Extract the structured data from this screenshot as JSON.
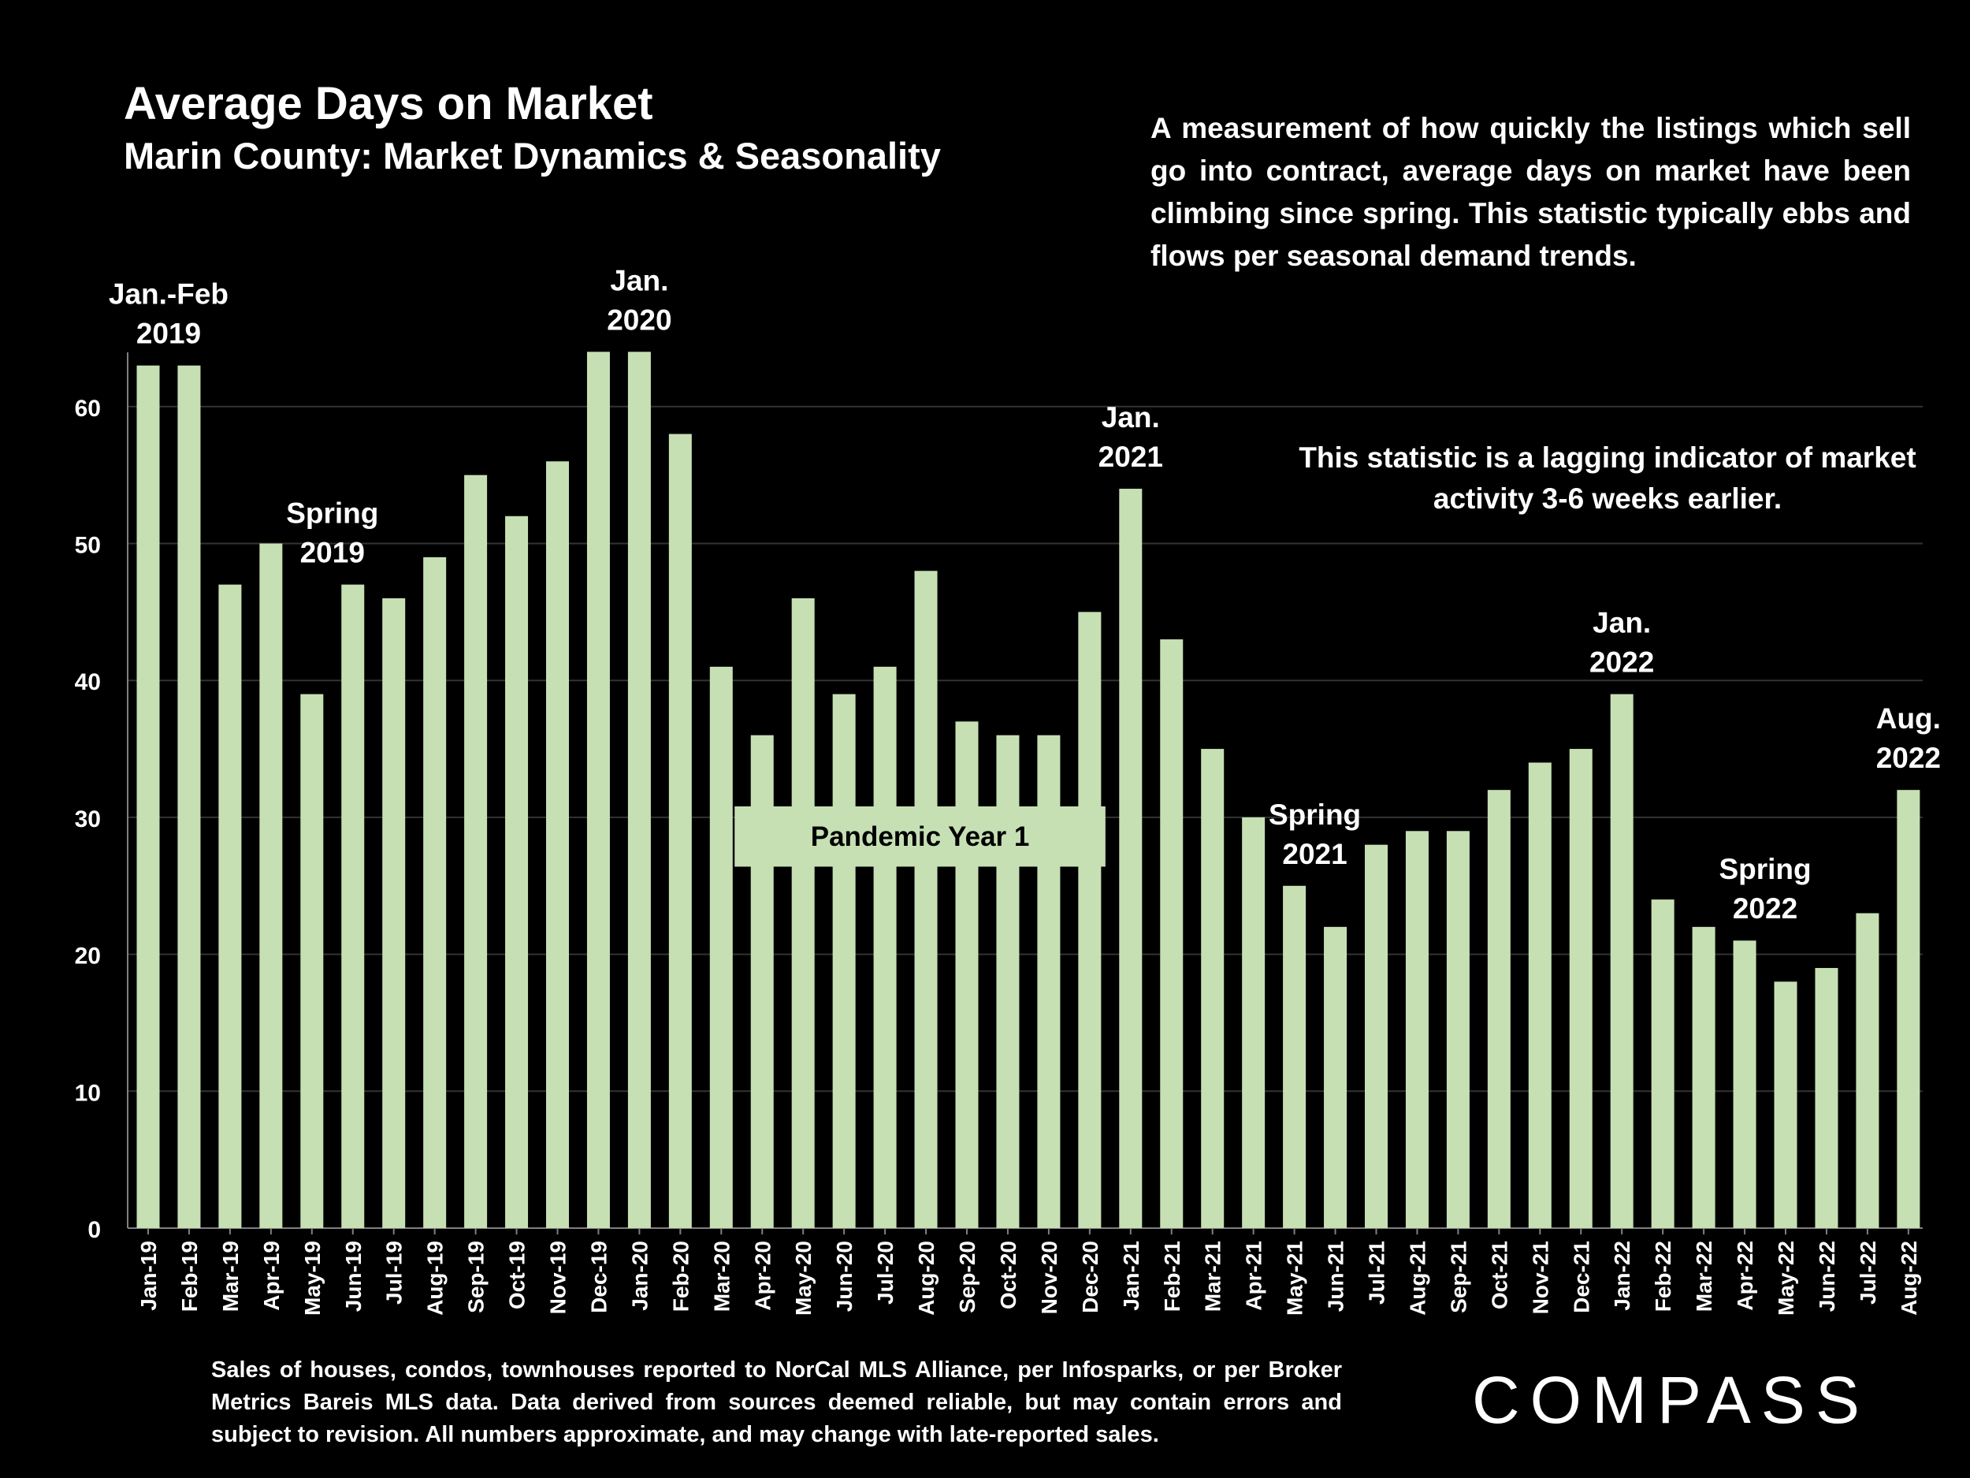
{
  "colors": {
    "background": "#000000",
    "bar": "#c6e0b4",
    "text": "#ffffff",
    "grid": "#333333",
    "band_text": "#000000"
  },
  "chart_data": {
    "type": "bar",
    "title": "Average Days on Market",
    "subtitle": "Marin County: Market Dynamics & Seasonality",
    "categories": [
      "Jan-19",
      "Feb-19",
      "Mar-19",
      "Apr-19",
      "May-19",
      "Jun-19",
      "Jul-19",
      "Aug-19",
      "Sep-19",
      "Oct-19",
      "Nov-19",
      "Dec-19",
      "Jan-20",
      "Feb-20",
      "Mar-20",
      "Apr-20",
      "May-20",
      "Jun-20",
      "Jul-20",
      "Aug-20",
      "Sep-20",
      "Oct-20",
      "Nov-20",
      "Dec-20",
      "Jan-21",
      "Feb-21",
      "Mar-21",
      "Apr-21",
      "May-21",
      "Jun-21",
      "Jul-21",
      "Aug-21",
      "Sep-21",
      "Oct-21",
      "Nov-21",
      "Dec-21",
      "Jan-22",
      "Feb-22",
      "Mar-22",
      "Apr-22",
      "May-22",
      "Jun-22",
      "Jul-22",
      "Aug-22"
    ],
    "values": [
      63,
      63,
      47,
      50,
      39,
      47,
      46,
      49,
      55,
      52,
      56,
      67,
      67,
      58,
      41,
      36,
      46,
      39,
      41,
      48,
      37,
      36,
      36,
      45,
      54,
      43,
      35,
      30,
      25,
      22,
      28,
      29,
      29,
      32,
      34,
      35,
      39,
      24,
      22,
      21,
      18,
      19,
      23,
      32
    ],
    "ylim": [
      0,
      64
    ],
    "yticks": [
      "0",
      "10",
      "20",
      "30",
      "40",
      "50",
      "60"
    ],
    "xlabel": "",
    "ylabel": "",
    "grid": true,
    "annotations": [
      {
        "lines": [
          "Jan.-Feb",
          "2019"
        ],
        "index": 0.5
      },
      {
        "lines": [
          "Spring",
          "2019"
        ],
        "index": 4.5
      },
      {
        "lines": [
          "Jan.",
          "2020"
        ],
        "index": 12
      },
      {
        "lines": [
          "Jan.",
          "2021"
        ],
        "index": 24
      },
      {
        "lines": [
          "Spring",
          "2021"
        ],
        "index": 28.5
      },
      {
        "lines": [
          "Jan.",
          "2022"
        ],
        "index": 36
      },
      {
        "lines": [
          "Spring",
          "2022"
        ],
        "index": 39.5
      },
      {
        "lines": [
          "Aug.",
          "2022"
        ],
        "index": 43
      }
    ],
    "band_label": "Pandemic Year 1"
  },
  "description": "A measurement of how quickly the listings which sell go into contract, average days on market have been climbing since spring. This statistic typically ebbs and flows per seasonal demand trends.",
  "lagging_note": "This statistic is a lagging indicator of market activity 3-6 weeks earlier.",
  "footnote": "Sales of houses, condos, townhouses reported to NorCal MLS Alliance, per Infosparks, or per Broker Metrics Bareis MLS data. Data derived from sources deemed reliable, but may contain errors and subject to revision. All numbers approximate, and may change with late-reported sales.",
  "logo": "COMPASS"
}
